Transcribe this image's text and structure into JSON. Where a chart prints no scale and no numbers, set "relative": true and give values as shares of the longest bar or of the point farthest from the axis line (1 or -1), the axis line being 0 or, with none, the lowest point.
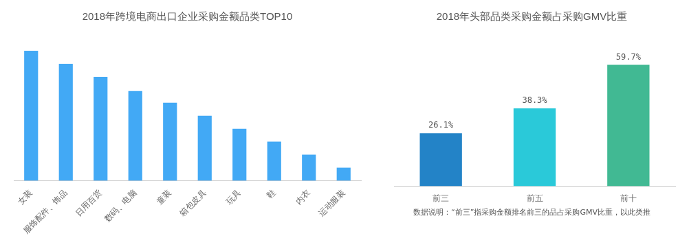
{
  "chart_data": [
    {
      "type": "bar",
      "title": "2018年跨境电商出口企业采购金额品类TOP10",
      "categories": [
        "女装",
        "服饰配件、饰品",
        "日用百货",
        "数码、电脑",
        "童装",
        "箱包皮具",
        "玩具",
        "鞋",
        "内衣",
        "运动服装"
      ],
      "values": [
        1,
        0.9,
        0.8,
        0.69,
        0.6,
        0.5,
        0.4,
        0.3,
        0.2,
        0.1
      ],
      "color": "#42a9f5",
      "relative": true
    },
    {
      "type": "bar",
      "title": "2018年头部品类采购金额占采购GMV比重",
      "categories": [
        "前三",
        "前五",
        "前十"
      ],
      "values": [
        26.1,
        38.3,
        59.7
      ],
      "colors": [
        "#2383c7",
        "#2ac9d9",
        "#41b993"
      ],
      "value_labels": [
        "26.1%",
        "38.3%",
        "59.7%"
      ],
      "annotations": [
        "数据说明：“前三”指采购金额排名前三的品占采购GMV比重，以此类推"
      ]
    }
  ]
}
